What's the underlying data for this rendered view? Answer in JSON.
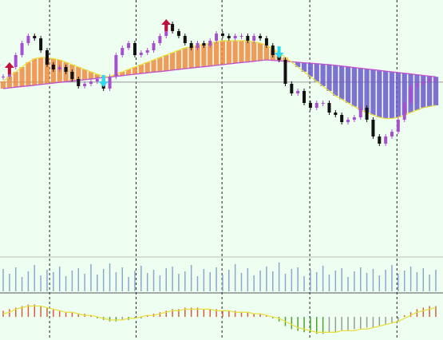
{
  "chart_data": {
    "type": "candlestick",
    "background": "#eefff2",
    "ylim": [
      0,
      100
    ],
    "close": [
      68,
      72,
      77,
      82,
      85,
      84,
      79,
      73,
      71,
      72,
      70,
      67,
      64,
      65,
      66,
      67,
      63,
      68,
      77,
      80,
      82,
      77,
      78,
      79,
      82,
      85,
      90,
      87,
      85,
      82,
      80,
      82,
      81,
      83,
      86,
      85,
      84,
      85,
      85,
      83,
      85,
      84,
      81,
      77,
      75,
      65,
      61,
      62,
      57,
      55,
      57,
      57,
      53,
      52,
      49,
      50,
      51,
      55,
      50,
      43,
      40,
      43,
      45,
      50,
      57,
      64,
      65,
      66,
      67,
      67
    ],
    "up_color": "#a64fd0",
    "down_color": "#111111",
    "ma_fast": {
      "color": "#e8e040",
      "values": [
        66,
        68,
        70,
        72,
        74,
        75.5,
        76,
        76,
        75.5,
        75,
        74,
        73,
        72,
        71,
        70,
        69,
        68,
        68,
        69,
        70,
        71,
        72,
        73,
        74,
        75,
        76,
        77,
        78,
        79,
        80,
        80.5,
        81,
        81.5,
        82,
        82.5,
        83,
        83,
        83,
        83,
        83,
        82.5,
        82,
        81,
        79.5,
        78,
        76,
        74,
        72,
        70,
        68,
        66,
        64,
        62,
        60,
        58.5,
        57,
        55.5,
        54,
        53,
        52,
        51,
        50.5,
        50.5,
        51,
        52,
        53,
        54,
        55,
        55.5,
        56
      ]
    },
    "ma_slow": {
      "color": "#c050d0",
      "values": [
        63,
        63.3,
        63.6,
        63.9,
        64.1,
        64.4,
        64.7,
        65,
        65.3,
        65.6,
        65.9,
        66.1,
        66.4,
        66.7,
        67,
        67.3,
        67.6,
        67.9,
        68.1,
        68.4,
        68.7,
        69,
        69.3,
        69.6,
        69.9,
        70.1,
        70.4,
        70.7,
        71,
        71.3,
        71.6,
        71.9,
        72.1,
        72.4,
        72.7,
        73,
        73.3,
        73.6,
        73.9,
        74.1,
        74.4,
        74.7,
        75,
        74.8,
        74.6,
        74.4,
        74.2,
        74,
        73.8,
        73.6,
        73.4,
        73.2,
        73,
        72.7,
        72.4,
        72.1,
        71.8,
        71.5,
        71.2,
        70.9,
        70.6,
        70.3,
        70,
        69.7,
        69.4,
        69.1,
        68.8,
        68.5,
        68.2,
        67.9
      ]
    },
    "cloud_up_color": "#f08a40",
    "cloud_down_color": "#6a5acd",
    "hline": 65.7,
    "xgrid": [
      7.4,
      21.2,
      34.9,
      48.9,
      62.8
    ],
    "signals_up": [
      1,
      26
    ],
    "signals_down": [
      16,
      44
    ],
    "signal_up_color": "#c0103a",
    "signal_down_color": "#30d8f0",
    "volume": {
      "color": "#8aa8c8",
      "ylim": [
        0,
        40
      ],
      "values": [
        28,
        22,
        30,
        18,
        25,
        33,
        20,
        27,
        24,
        31,
        19,
        26,
        29,
        22,
        34,
        21,
        28,
        35,
        24,
        30,
        18,
        26,
        32,
        23,
        27,
        20,
        29,
        31,
        22,
        25,
        33,
        19,
        28,
        24,
        30,
        21,
        27,
        34,
        23,
        29,
        20,
        26,
        31,
        25,
        36,
        22,
        28,
        30,
        19,
        27,
        24,
        32,
        21,
        26,
        29,
        18,
        25,
        30,
        23,
        28,
        20,
        27,
        33,
        22,
        26,
        31,
        24,
        29,
        21,
        27
      ]
    },
    "oscillator": {
      "ylim": [
        -14,
        14
      ],
      "up_color": "#d06040",
      "down_color": "#9a9a9a",
      "low_color": "#50a030",
      "signal_color": "#e8e040",
      "values": [
        4,
        5,
        6,
        7,
        8,
        8,
        7,
        6,
        5,
        4,
        3,
        3,
        2,
        2,
        1,
        -1,
        -2,
        -3,
        -3,
        -2,
        -2,
        -1,
        -1,
        1,
        2,
        3,
        4,
        5,
        5,
        6,
        6,
        6,
        5,
        5,
        5,
        4,
        4,
        4,
        3,
        3,
        2,
        2,
        1,
        -1,
        -3,
        -6,
        -8,
        -9,
        -10,
        -10,
        -11,
        -11,
        -10,
        -10,
        -9,
        -9,
        -8,
        -8,
        -7,
        -7,
        -6,
        -5,
        -4,
        -3,
        1,
        3,
        5,
        6,
        7,
        7
      ],
      "signal": [
        2,
        3,
        5,
        6,
        7,
        7,
        7,
        6,
        5,
        4,
        3,
        3,
        2,
        1,
        1,
        0,
        -1,
        -2,
        -2,
        -2,
        -1,
        -1,
        0,
        1,
        1,
        2,
        3,
        4,
        4,
        5,
        5,
        5,
        5,
        5,
        4,
        4,
        4,
        3,
        3,
        3,
        2,
        2,
        1,
        0,
        -1,
        -3,
        -5,
        -7,
        -8,
        -9,
        -10,
        -10,
        -10,
        -10,
        -9,
        -9,
        -9,
        -8,
        -8,
        -7,
        -6,
        -5,
        -4,
        -3,
        -1,
        1,
        3,
        4,
        5,
        6
      ]
    }
  }
}
